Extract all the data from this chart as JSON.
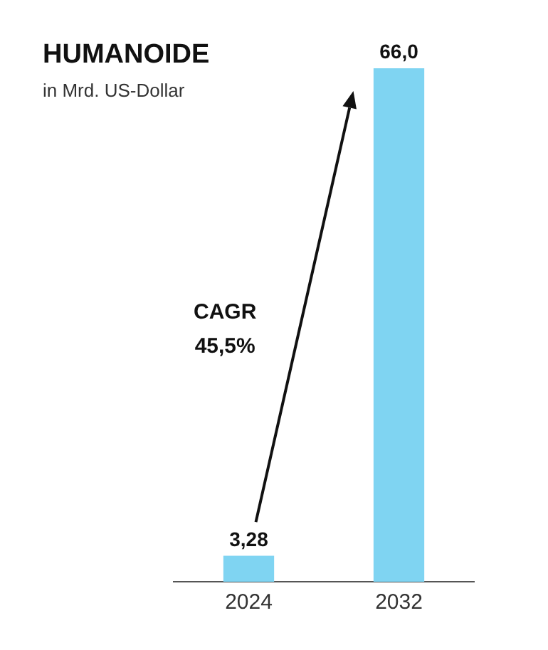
{
  "chart_data": {
    "type": "bar",
    "title": "HUMANOIDE",
    "subtitle": "in Mrd. US-Dollar",
    "categories": [
      "2024",
      "2032"
    ],
    "values": [
      3.28,
      66.0
    ],
    "value_labels": [
      "3,28",
      "66,0"
    ],
    "color": "#7fd4f2",
    "annotations": [
      "CAGR",
      "45,5%"
    ],
    "grid": false,
    "legend": false
  }
}
